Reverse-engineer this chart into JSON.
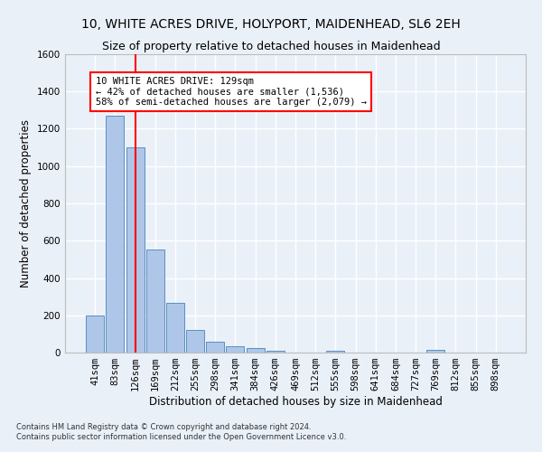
{
  "title1": "10, WHITE ACRES DRIVE, HOLYPORT, MAIDENHEAD, SL6 2EH",
  "title2": "Size of property relative to detached houses in Maidenhead",
  "xlabel": "Distribution of detached houses by size in Maidenhead",
  "ylabel": "Number of detached properties",
  "footer1": "Contains HM Land Registry data © Crown copyright and database right 2024.",
  "footer2": "Contains public sector information licensed under the Open Government Licence v3.0.",
  "bar_labels": [
    "41sqm",
    "83sqm",
    "126sqm",
    "169sqm",
    "212sqm",
    "255sqm",
    "298sqm",
    "341sqm",
    "384sqm",
    "426sqm",
    "469sqm",
    "512sqm",
    "555sqm",
    "598sqm",
    "641sqm",
    "684sqm",
    "727sqm",
    "769sqm",
    "812sqm",
    "855sqm",
    "898sqm"
  ],
  "bar_values": [
    200,
    1270,
    1100,
    555,
    265,
    120,
    58,
    32,
    22,
    10,
    0,
    0,
    10,
    0,
    0,
    0,
    0,
    15,
    0,
    0,
    0
  ],
  "bar_color": "#aec6e8",
  "bar_edge_color": "#5a8fc0",
  "vline_x": 2.0,
  "annotation_box_text": "10 WHITE ACRES DRIVE: 129sqm\n← 42% of detached houses are smaller (1,536)\n58% of semi-detached houses are larger (2,079) →",
  "annotation_box_color": "white",
  "annotation_box_edge_color": "red",
  "vline_color": "red",
  "ylim": [
    0,
    1600
  ],
  "yticks": [
    0,
    200,
    400,
    600,
    800,
    1000,
    1200,
    1400,
    1600
  ],
  "bg_color": "#eaf0f8",
  "grid_color": "white",
  "title_fontsize": 10,
  "subtitle_fontsize": 9,
  "axis_fontsize": 8.5,
  "tick_fontsize": 7.5,
  "annotation_fontsize": 7.5
}
